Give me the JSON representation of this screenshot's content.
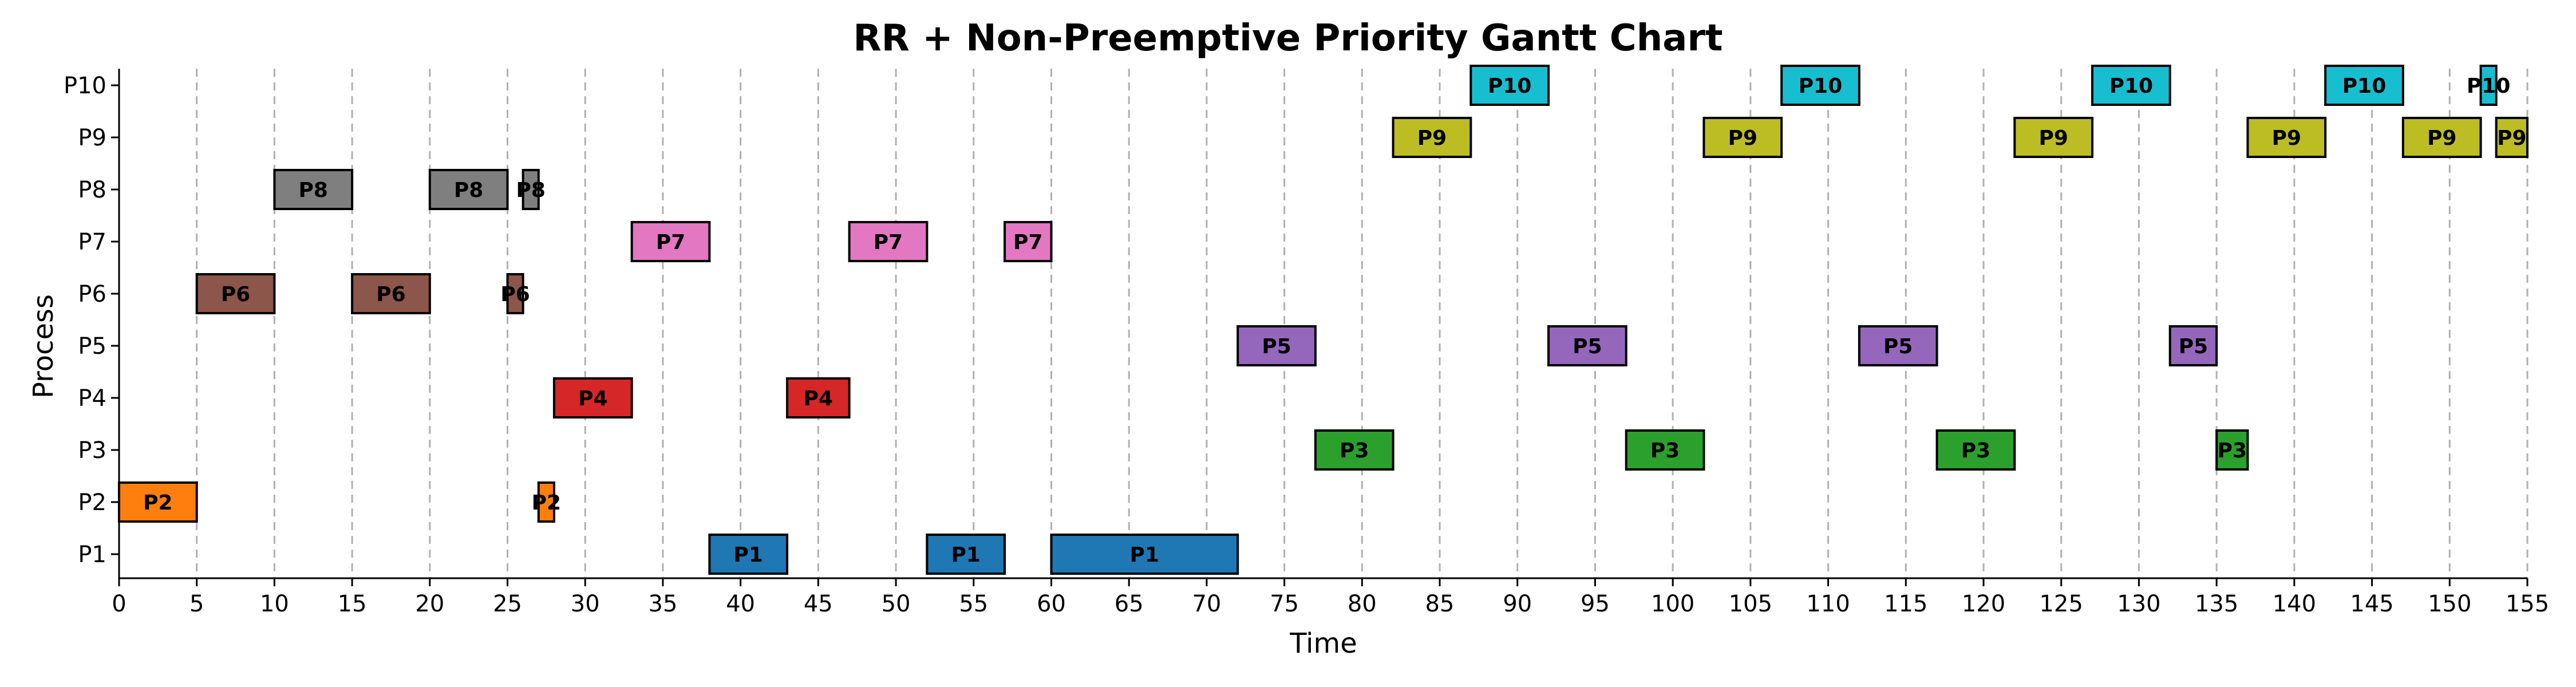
{
  "chart_data": {
    "type": "gantt",
    "title": "RR + Non-Preemptive Priority Gantt Chart",
    "xlabel": "Time",
    "ylabel": "Process",
    "xlim": [
      0,
      155
    ],
    "xticks": [
      0,
      5,
      10,
      15,
      20,
      25,
      30,
      35,
      40,
      45,
      50,
      55,
      60,
      65,
      70,
      75,
      80,
      85,
      90,
      95,
      100,
      105,
      110,
      115,
      120,
      125,
      130,
      135,
      140,
      145,
      150,
      155
    ],
    "processes": [
      "P1",
      "P2",
      "P3",
      "P4",
      "P5",
      "P6",
      "P7",
      "P8",
      "P9",
      "P10"
    ],
    "grid": "vertical dashed",
    "colors": {
      "P1": "#1f77b4",
      "P2": "#ff7f0e",
      "P3": "#2ca02c",
      "P4": "#d62728",
      "P5": "#9467bd",
      "P6": "#8c564b",
      "P7": "#e377c2",
      "P8": "#7f7f7f",
      "P9": "#bcbd22",
      "P10": "#17becf"
    },
    "segments": [
      {
        "process": "P2",
        "start": 0,
        "end": 5
      },
      {
        "process": "P6",
        "start": 5,
        "end": 10
      },
      {
        "process": "P8",
        "start": 10,
        "end": 15
      },
      {
        "process": "P6",
        "start": 15,
        "end": 20
      },
      {
        "process": "P8",
        "start": 20,
        "end": 25
      },
      {
        "process": "P6",
        "start": 25,
        "end": 26
      },
      {
        "process": "P8",
        "start": 26,
        "end": 27
      },
      {
        "process": "P2",
        "start": 27,
        "end": 28
      },
      {
        "process": "P4",
        "start": 28,
        "end": 33
      },
      {
        "process": "P7",
        "start": 33,
        "end": 38
      },
      {
        "process": "P1",
        "start": 38,
        "end": 43
      },
      {
        "process": "P4",
        "start": 43,
        "end": 47
      },
      {
        "process": "P7",
        "start": 47,
        "end": 52
      },
      {
        "process": "P1",
        "start": 52,
        "end": 57
      },
      {
        "process": "P7",
        "start": 57,
        "end": 60
      },
      {
        "process": "P1",
        "start": 60,
        "end": 72
      },
      {
        "process": "P5",
        "start": 72,
        "end": 77
      },
      {
        "process": "P3",
        "start": 77,
        "end": 82
      },
      {
        "process": "P9",
        "start": 82,
        "end": 87
      },
      {
        "process": "P10",
        "start": 87,
        "end": 92
      },
      {
        "process": "P5",
        "start": 92,
        "end": 97
      },
      {
        "process": "P3",
        "start": 97,
        "end": 102
      },
      {
        "process": "P9",
        "start": 102,
        "end": 107
      },
      {
        "process": "P10",
        "start": 107,
        "end": 112
      },
      {
        "process": "P5",
        "start": 112,
        "end": 117
      },
      {
        "process": "P3",
        "start": 117,
        "end": 122
      },
      {
        "process": "P9",
        "start": 122,
        "end": 127
      },
      {
        "process": "P10",
        "start": 127,
        "end": 132
      },
      {
        "process": "P5",
        "start": 132,
        "end": 135
      },
      {
        "process": "P3",
        "start": 135,
        "end": 137
      },
      {
        "process": "P9",
        "start": 137,
        "end": 142
      },
      {
        "process": "P10",
        "start": 142,
        "end": 147
      },
      {
        "process": "P9",
        "start": 147,
        "end": 152
      },
      {
        "process": "P10",
        "start": 152,
        "end": 153
      },
      {
        "process": "P9",
        "start": 153,
        "end": 155
      }
    ]
  }
}
